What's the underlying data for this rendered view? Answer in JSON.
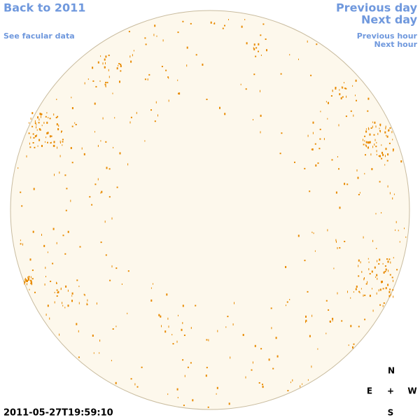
{
  "nav": {
    "back": "Back to 2011",
    "facular_data": "See facular data",
    "previous_day": "Previous day",
    "next_day": "Next day",
    "previous_hour": "Previous hour",
    "next_hour": "Next hour"
  },
  "timestamp": "2011-05-27T19:59:10",
  "compass": {
    "north": "N",
    "east": "E",
    "center": "+",
    "west": "W",
    "south": "S"
  }
}
